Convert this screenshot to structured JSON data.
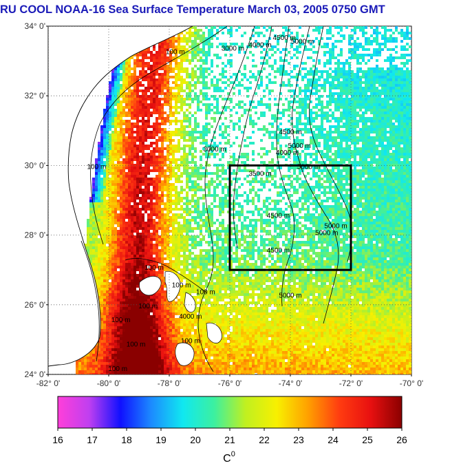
{
  "title": "RU COOL  NOAA-16 Sea Surface Temperature March 03, 2005 0750 GMT",
  "map": {
    "lon_range": [
      -82,
      -70
    ],
    "lat_range": [
      24,
      34
    ],
    "lat_ticks": [
      "34° 0'",
      "32° 0'",
      "30° 0'",
      "28° 0'",
      "26° 0'",
      "24° 0'"
    ],
    "lon_ticks": [
      "-82° 0'",
      "-80° 0'",
      "-78° 0'",
      "-76° 0'",
      "-74° 0'",
      "-72° 0'",
      "-70° 0'"
    ],
    "grid": "dotted",
    "box": {
      "lon_min": -76,
      "lon_max": -72,
      "lat_min": 27,
      "lat_max": 30
    },
    "contour_labels": [
      {
        "text": "100 m",
        "lon": -77.8,
        "lat": 33.2
      },
      {
        "text": "3000 m",
        "lon": -75.9,
        "lat": 33.3
      },
      {
        "text": "4000 m",
        "lon": -75.0,
        "lat": 33.4
      },
      {
        "text": "4500 m",
        "lon": -74.2,
        "lat": 33.6
      },
      {
        "text": "5000 m",
        "lon": -73.6,
        "lat": 33.5
      },
      {
        "text": "100 m",
        "lon": -80.4,
        "lat": 29.9
      },
      {
        "text": "3000 m",
        "lon": -76.5,
        "lat": 30.4
      },
      {
        "text": "4000 m",
        "lon": -74.1,
        "lat": 30.3
      },
      {
        "text": "4500 m",
        "lon": -74.0,
        "lat": 30.9
      },
      {
        "text": "5000 m",
        "lon": -73.7,
        "lat": 30.5
      },
      {
        "text": "5000 m",
        "lon": -73.4,
        "lat": 29.9
      },
      {
        "text": "3500 m",
        "lon": -75.0,
        "lat": 29.7
      },
      {
        "text": "4500 m",
        "lon": -74.4,
        "lat": 28.5
      },
      {
        "text": "4500 m",
        "lon": -74.4,
        "lat": 27.5
      },
      {
        "text": "5000 m",
        "lon": -72.8,
        "lat": 28.0
      },
      {
        "text": "5000 m",
        "lon": -72.5,
        "lat": 28.2
      },
      {
        "text": "100 m",
        "lon": -78.5,
        "lat": 27.0
      },
      {
        "text": "100 m",
        "lon": -77.6,
        "lat": 26.5
      },
      {
        "text": "100 m",
        "lon": -76.8,
        "lat": 26.3
      },
      {
        "text": "100 m",
        "lon": -78.7,
        "lat": 25.9
      },
      {
        "text": "100 m",
        "lon": -79.6,
        "lat": 25.5
      },
      {
        "text": "100 m",
        "lon": -79.1,
        "lat": 24.8
      },
      {
        "text": "100 m",
        "lon": -77.3,
        "lat": 24.9
      },
      {
        "text": "4000 m",
        "lon": -77.3,
        "lat": 25.6
      },
      {
        "text": "5000 m",
        "lon": -74.0,
        "lat": 26.2
      },
      {
        "text": "100 m",
        "lon": -79.7,
        "lat": 24.1
      }
    ]
  },
  "colorbar": {
    "min": 16,
    "max": 26,
    "ticks": [
      "16",
      "17",
      "18",
      "19",
      "20",
      "21",
      "22",
      "23",
      "24",
      "25",
      "26"
    ],
    "unit": "C",
    "unit_sup": "0",
    "stops": [
      "#ff3fd9",
      "#c03ff0",
      "#1010ff",
      "#1c8cff",
      "#10e8f0",
      "#3cf0a0",
      "#c0f020",
      "#f8f000",
      "#ffa000",
      "#ff3c10",
      "#e81010",
      "#8a0000"
    ]
  },
  "colors": {
    "land": "#ffffff",
    "coast": "#000000",
    "contour": "#000000",
    "box": "#000000",
    "title": "#1a1ab8"
  }
}
